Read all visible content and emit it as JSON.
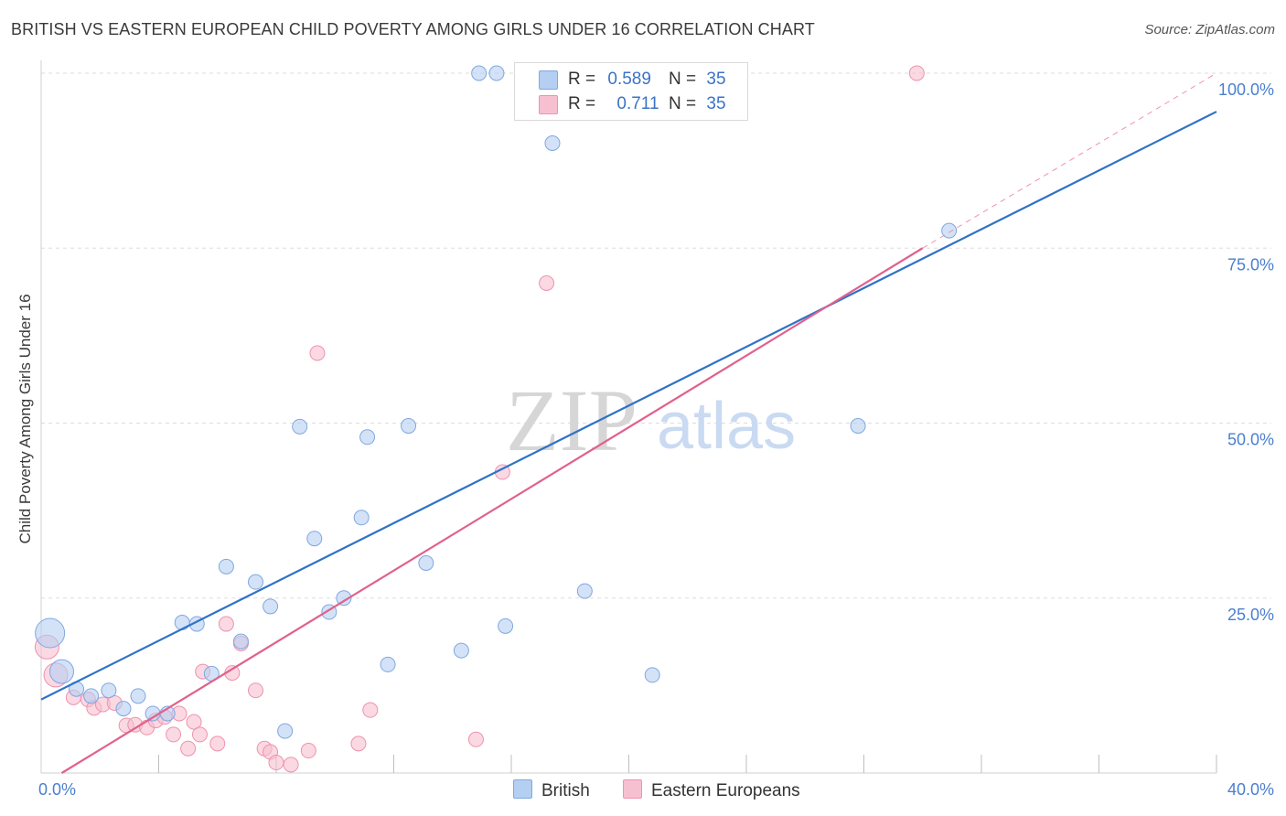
{
  "header": {
    "title": "BRITISH VS EASTERN EUROPEAN CHILD POVERTY AMONG GIRLS UNDER 16 CORRELATION CHART",
    "source": "Source: ZipAtlas.com"
  },
  "watermark": {
    "zip": "ZIP",
    "atlas": "atlas"
  },
  "legend_top": {
    "rows": [
      {
        "r_label": "R =",
        "r_value": "0.589",
        "n_label": "N =",
        "n_value": "35"
      },
      {
        "r_label": "R =",
        "r_value": "0.711",
        "n_label": "N =",
        "n_value": "35"
      }
    ]
  },
  "legend_bottom": {
    "british": "British",
    "eastern": "Eastern Europeans"
  },
  "colors": {
    "british_fill": "#b5cff2",
    "british_stroke": "#7fa8e0",
    "british_line": "#2f72c9",
    "eastern_fill": "#f7c0d0",
    "eastern_stroke": "#ee92ad",
    "eastern_line": "#e0628c",
    "grid": "#dddddd",
    "tick_label": "#4a7fcf"
  },
  "chart_data": {
    "type": "scatter",
    "title": "BRITISH VS EASTERN EUROPEAN CHILD POVERTY AMONG GIRLS UNDER 16 CORRELATION CHART",
    "xlabel": "",
    "ylabel": "Child Poverty Among Girls Under 16",
    "xlim": [
      0,
      40
    ],
    "ylim": [
      0,
      100
    ],
    "x_ticks": [
      {
        "value": 0,
        "label": "0.0%"
      },
      {
        "value": 40,
        "label": "40.0%"
      }
    ],
    "y_ticks": [
      {
        "value": 25,
        "label": "25.0%"
      },
      {
        "value": 50,
        "label": "50.0%"
      },
      {
        "value": 75,
        "label": "75.0%"
      },
      {
        "value": 100,
        "label": "100.0%"
      }
    ],
    "grid": true,
    "legend_position": "top-center",
    "series": [
      {
        "name": "British",
        "r": 0.589,
        "n": 35,
        "trend": {
          "x": [
            0,
            40
          ],
          "y": [
            10.5,
            94.5
          ]
        },
        "points": [
          {
            "x": 0.3,
            "y": 20.0,
            "size": 3
          },
          {
            "x": 0.7,
            "y": 14.5,
            "size": 2
          },
          {
            "x": 1.2,
            "y": 12.0,
            "size": 1
          },
          {
            "x": 1.7,
            "y": 11.0,
            "size": 1
          },
          {
            "x": 2.3,
            "y": 11.8,
            "size": 1
          },
          {
            "x": 2.8,
            "y": 9.2,
            "size": 1
          },
          {
            "x": 3.3,
            "y": 11.0,
            "size": 1
          },
          {
            "x": 3.8,
            "y": 8.5,
            "size": 1
          },
          {
            "x": 4.3,
            "y": 8.5,
            "size": 1
          },
          {
            "x": 4.8,
            "y": 21.5,
            "size": 1
          },
          {
            "x": 5.3,
            "y": 21.3,
            "size": 1
          },
          {
            "x": 5.8,
            "y": 14.2,
            "size": 1
          },
          {
            "x": 6.3,
            "y": 29.5,
            "size": 1
          },
          {
            "x": 6.8,
            "y": 18.8,
            "size": 1
          },
          {
            "x": 7.3,
            "y": 27.3,
            "size": 1
          },
          {
            "x": 7.8,
            "y": 23.8,
            "size": 1
          },
          {
            "x": 8.3,
            "y": 6.0,
            "size": 1
          },
          {
            "x": 8.8,
            "y": 49.5,
            "size": 1
          },
          {
            "x": 9.3,
            "y": 33.5,
            "size": 1
          },
          {
            "x": 9.8,
            "y": 23.0,
            "size": 1
          },
          {
            "x": 10.3,
            "y": 25.0,
            "size": 1
          },
          {
            "x": 10.9,
            "y": 36.5,
            "size": 1
          },
          {
            "x": 11.1,
            "y": 48.0,
            "size": 1
          },
          {
            "x": 11.8,
            "y": 15.5,
            "size": 1
          },
          {
            "x": 12.5,
            "y": 49.6,
            "size": 1
          },
          {
            "x": 13.1,
            "y": 30.0,
            "size": 1
          },
          {
            "x": 14.3,
            "y": 17.5,
            "size": 1
          },
          {
            "x": 14.9,
            "y": 100.0,
            "size": 1
          },
          {
            "x": 15.5,
            "y": 100.0,
            "size": 1
          },
          {
            "x": 15.8,
            "y": 21.0,
            "size": 1
          },
          {
            "x": 17.4,
            "y": 90.0,
            "size": 1
          },
          {
            "x": 18.5,
            "y": 26.0,
            "size": 1
          },
          {
            "x": 20.8,
            "y": 14.0,
            "size": 1
          },
          {
            "x": 27.8,
            "y": 49.6,
            "size": 1
          },
          {
            "x": 30.9,
            "y": 77.5,
            "size": 1
          }
        ]
      },
      {
        "name": "Eastern Europeans",
        "r": 0.711,
        "n": 35,
        "trend": {
          "x": [
            0.7,
            30.0
          ],
          "y": [
            0.0,
            75.0
          ]
        },
        "trend_dashed": {
          "x": [
            30.0,
            40.0
          ],
          "y": [
            75.0,
            100.0
          ]
        },
        "points": [
          {
            "x": 0.2,
            "y": 18.0,
            "size": 2
          },
          {
            "x": 0.5,
            "y": 14.0,
            "size": 2
          },
          {
            "x": 1.1,
            "y": 10.8,
            "size": 1
          },
          {
            "x": 1.6,
            "y": 10.5,
            "size": 1
          },
          {
            "x": 1.8,
            "y": 9.3,
            "size": 1
          },
          {
            "x": 2.1,
            "y": 9.8,
            "size": 1
          },
          {
            "x": 2.5,
            "y": 10.0,
            "size": 1
          },
          {
            "x": 2.9,
            "y": 6.8,
            "size": 1
          },
          {
            "x": 3.2,
            "y": 6.9,
            "size": 1
          },
          {
            "x": 3.6,
            "y": 6.5,
            "size": 1
          },
          {
            "x": 3.9,
            "y": 7.5,
            "size": 1
          },
          {
            "x": 4.2,
            "y": 8.0,
            "size": 1
          },
          {
            "x": 4.5,
            "y": 5.5,
            "size": 1
          },
          {
            "x": 4.7,
            "y": 8.5,
            "size": 1
          },
          {
            "x": 5.0,
            "y": 3.5,
            "size": 1
          },
          {
            "x": 5.2,
            "y": 7.3,
            "size": 1
          },
          {
            "x": 5.4,
            "y": 5.5,
            "size": 1
          },
          {
            "x": 5.5,
            "y": 14.5,
            "size": 1
          },
          {
            "x": 6.0,
            "y": 4.2,
            "size": 1
          },
          {
            "x": 6.3,
            "y": 21.3,
            "size": 1
          },
          {
            "x": 6.5,
            "y": 14.3,
            "size": 1
          },
          {
            "x": 6.8,
            "y": 18.5,
            "size": 1
          },
          {
            "x": 7.3,
            "y": 11.8,
            "size": 1
          },
          {
            "x": 7.6,
            "y": 3.5,
            "size": 1
          },
          {
            "x": 7.8,
            "y": 3.0,
            "size": 1
          },
          {
            "x": 8.0,
            "y": 1.5,
            "size": 1
          },
          {
            "x": 8.5,
            "y": 1.2,
            "size": 1
          },
          {
            "x": 9.1,
            "y": 3.2,
            "size": 1
          },
          {
            "x": 9.4,
            "y": 60.0,
            "size": 1
          },
          {
            "x": 10.8,
            "y": 4.2,
            "size": 1
          },
          {
            "x": 11.2,
            "y": 9.0,
            "size": 1
          },
          {
            "x": 14.8,
            "y": 4.8,
            "size": 1
          },
          {
            "x": 15.7,
            "y": 43.0,
            "size": 1
          },
          {
            "x": 17.2,
            "y": 70.0,
            "size": 1
          },
          {
            "x": 29.8,
            "y": 100.0,
            "size": 1
          }
        ]
      }
    ]
  }
}
